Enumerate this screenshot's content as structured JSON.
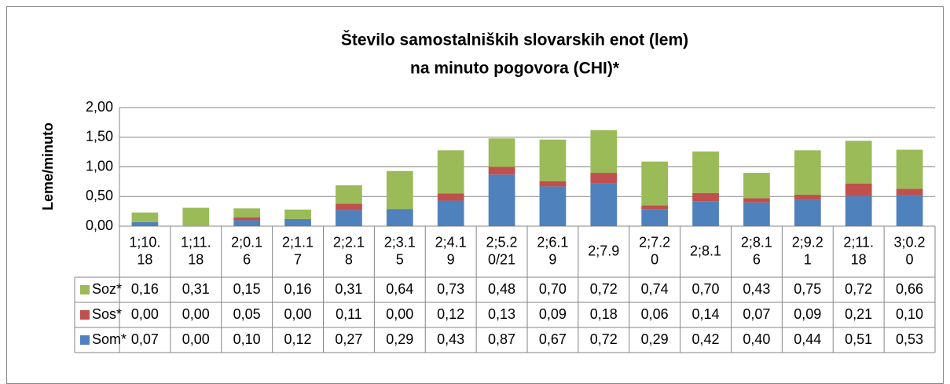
{
  "chart_data": {
    "type": "bar",
    "stacked": true,
    "title": [
      "Število samostalniških slovarskih enot (lem)",
      "na minuto pogovora (CHI)*"
    ],
    "ylabel": "Leme/minuto",
    "categories": [
      "1;10.18",
      "1;11.18",
      "2;0.16",
      "2;1.17",
      "2;2.18",
      "2;3.15",
      "2;4.19",
      "2;5.20/21",
      "2;6.19",
      "2;7.9",
      "2;7.20",
      "2;8.1",
      "2;8.16",
      "2;9.21",
      "2;11.18",
      "3;0.20"
    ],
    "series": [
      {
        "name": "Soz*",
        "color": "#9bbb59",
        "values": [
          0.16,
          0.31,
          0.15,
          0.16,
          0.31,
          0.64,
          0.73,
          0.48,
          0.7,
          0.72,
          0.74,
          0.7,
          0.43,
          0.75,
          0.72,
          0.66
        ],
        "value_labels": [
          "0,16",
          "0,31",
          "0,15",
          "0,16",
          "0,31",
          "0,64",
          "0,73",
          "0,48",
          "0,70",
          "0,72",
          "0,74",
          "0,70",
          "0,43",
          "0,75",
          "0,72",
          "0,66"
        ]
      },
      {
        "name": "Sos*",
        "color": "#c0504d",
        "values": [
          0.0,
          0.0,
          0.05,
          0.0,
          0.11,
          0.0,
          0.12,
          0.13,
          0.09,
          0.18,
          0.06,
          0.14,
          0.07,
          0.09,
          0.21,
          0.1
        ],
        "value_labels": [
          "0,00",
          "0,00",
          "0,05",
          "0,00",
          "0,11",
          "0,00",
          "0,12",
          "0,13",
          "0,09",
          "0,18",
          "0,06",
          "0,14",
          "0,07",
          "0,09",
          "0,21",
          "0,10"
        ]
      },
      {
        "name": "Som*",
        "color": "#4f81bd",
        "values": [
          0.07,
          0.0,
          0.1,
          0.12,
          0.27,
          0.29,
          0.43,
          0.87,
          0.67,
          0.72,
          0.29,
          0.42,
          0.4,
          0.44,
          0.51,
          0.53
        ],
        "value_labels": [
          "0,07",
          "0,00",
          "0,10",
          "0,12",
          "0,27",
          "0,29",
          "0,43",
          "0,87",
          "0,67",
          "0,72",
          "0,29",
          "0,42",
          "0,40",
          "0,44",
          "0,51",
          "0,53"
        ]
      }
    ],
    "ylim": [
      0,
      2
    ],
    "yticks": [
      {
        "value": 0,
        "label": "0,00"
      },
      {
        "value": 0.5,
        "label": "0,50"
      },
      {
        "value": 1,
        "label": "1,00"
      },
      {
        "value": 1.5,
        "label": "1,50"
      },
      {
        "value": 2,
        "label": "2,00"
      }
    ],
    "grid": true
  }
}
